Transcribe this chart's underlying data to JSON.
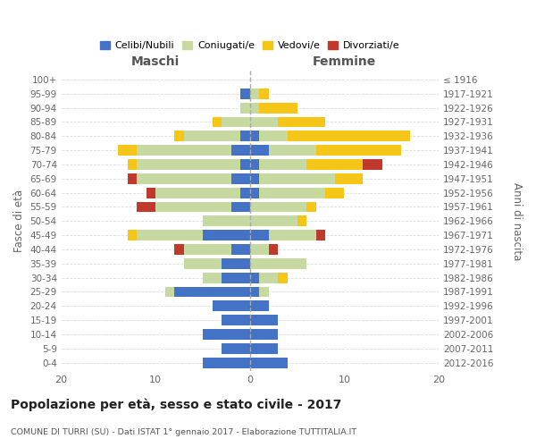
{
  "age_groups": [
    "100+",
    "95-99",
    "90-94",
    "85-89",
    "80-84",
    "75-79",
    "70-74",
    "65-69",
    "60-64",
    "55-59",
    "50-54",
    "45-49",
    "40-44",
    "35-39",
    "30-34",
    "25-29",
    "20-24",
    "15-19",
    "10-14",
    "5-9",
    "0-4"
  ],
  "birth_years": [
    "≤ 1916",
    "1917-1921",
    "1922-1926",
    "1927-1931",
    "1932-1936",
    "1937-1941",
    "1942-1946",
    "1947-1951",
    "1952-1956",
    "1957-1961",
    "1962-1966",
    "1967-1971",
    "1972-1976",
    "1977-1981",
    "1982-1986",
    "1987-1991",
    "1992-1996",
    "1997-2001",
    "2002-2006",
    "2007-2011",
    "2012-2016"
  ],
  "males_celibi": [
    0,
    1,
    0,
    0,
    1,
    2,
    1,
    2,
    1,
    2,
    0,
    5,
    2,
    3,
    3,
    8,
    4,
    3,
    5,
    3,
    5
  ],
  "males_coniugati": [
    0,
    0,
    1,
    3,
    6,
    10,
    11,
    10,
    9,
    8,
    5,
    7,
    5,
    4,
    2,
    1,
    0,
    0,
    0,
    0,
    0
  ],
  "males_vedovi": [
    0,
    0,
    0,
    1,
    1,
    2,
    1,
    0,
    0,
    0,
    0,
    1,
    0,
    0,
    0,
    0,
    0,
    0,
    0,
    0,
    0
  ],
  "males_divorziati": [
    0,
    0,
    0,
    0,
    0,
    0,
    0,
    1,
    1,
    2,
    0,
    0,
    1,
    0,
    0,
    0,
    0,
    0,
    0,
    0,
    0
  ],
  "females_nubili": [
    0,
    0,
    0,
    0,
    1,
    2,
    1,
    1,
    1,
    0,
    0,
    2,
    0,
    0,
    1,
    1,
    2,
    3,
    3,
    3,
    4
  ],
  "females_coniugate": [
    0,
    1,
    1,
    3,
    3,
    5,
    5,
    8,
    7,
    6,
    5,
    5,
    2,
    6,
    2,
    1,
    0,
    0,
    0,
    0,
    0
  ],
  "females_vedove": [
    0,
    1,
    4,
    5,
    13,
    9,
    6,
    3,
    2,
    1,
    1,
    0,
    0,
    0,
    1,
    0,
    0,
    0,
    0,
    0,
    0
  ],
  "females_divorziate": [
    0,
    0,
    0,
    0,
    0,
    0,
    2,
    0,
    0,
    0,
    0,
    1,
    1,
    0,
    0,
    0,
    0,
    0,
    0,
    0,
    0
  ],
  "color_celibi": "#4472c4",
  "color_coniugati": "#c5d9a0",
  "color_vedovi": "#f5c518",
  "color_divorziati": "#c0392b",
  "title": "Popolazione per età, sesso e stato civile - 2017",
  "subtitle": "COMUNE DI TURRI (SU) - Dati ISTAT 1° gennaio 2017 - Elaborazione TUTTITALIA.IT",
  "label_maschi": "Maschi",
  "label_femmine": "Femmine",
  "ylabel_left": "Fasce di età",
  "ylabel_right": "Anni di nascita",
  "legend_labels": [
    "Celibi/Nubili",
    "Coniugati/e",
    "Vedovi/e",
    "Divorziati/e"
  ],
  "xlim": 20
}
